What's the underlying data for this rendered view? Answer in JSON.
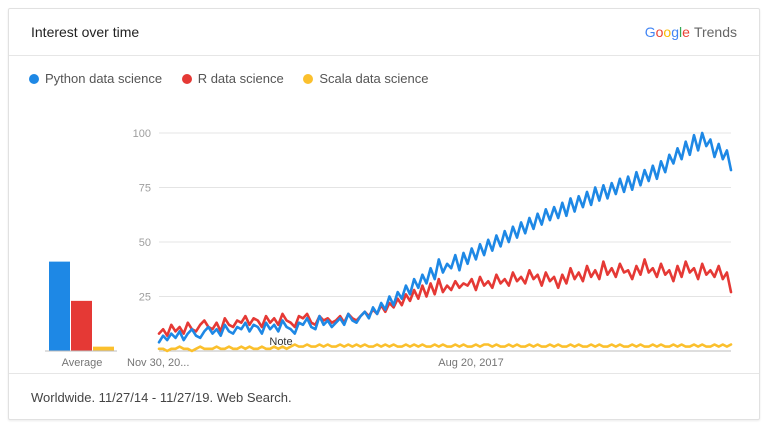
{
  "header": {
    "title": "Interest over time"
  },
  "brand": {
    "google": [
      "G",
      "o",
      "o",
      "g",
      "l",
      "e"
    ],
    "trends": "Trends"
  },
  "footer": {
    "text": "Worldwide. 11/27/14 - 11/27/19. Web Search."
  },
  "chart_data": {
    "type": "line",
    "ylim": [
      0,
      100
    ],
    "yticks": [
      25,
      50,
      75,
      100
    ],
    "grid": true,
    "legend_position": "top-left",
    "x_tick_labels": [
      "Nov 30, 20...",
      "Aug 20, 2017"
    ],
    "annotation": "Note",
    "average_label": "Average",
    "colors": {
      "python": "#1e88e5",
      "r": "#e53935",
      "scala": "#fbc02d"
    },
    "series": [
      {
        "name": "Python data science",
        "color": "#1e88e5",
        "average": 41,
        "values": [
          4,
          7,
          5,
          8,
          6,
          9,
          5,
          8,
          10,
          7,
          6,
          9,
          11,
          8,
          10,
          7,
          12,
          9,
          8,
          11,
          10,
          13,
          9,
          12,
          11,
          8,
          13,
          10,
          12,
          9,
          14,
          11,
          10,
          8,
          13,
          12,
          15,
          11,
          10,
          16,
          12,
          14,
          11,
          13,
          15,
          12,
          17,
          14,
          13,
          16,
          18,
          15,
          20,
          17,
          22,
          19,
          25,
          21,
          27,
          24,
          30,
          26,
          33,
          29,
          35,
          31,
          38,
          33,
          42,
          36,
          40,
          38,
          44,
          37,
          45,
          40,
          47,
          42,
          49,
          44,
          51,
          46,
          53,
          48,
          55,
          50,
          57,
          52,
          59,
          54,
          61,
          56,
          63,
          58,
          65,
          60,
          66,
          61,
          68,
          62,
          70,
          64,
          71,
          66,
          73,
          67,
          75,
          69,
          76,
          70,
          77,
          72,
          79,
          73,
          80,
          74,
          82,
          76,
          83,
          78,
          85,
          79,
          87,
          82,
          90,
          86,
          93,
          88,
          96,
          90,
          99,
          92,
          100,
          94,
          97,
          89,
          95,
          88,
          92,
          83
        ]
      },
      {
        "name": "R data science",
        "color": "#e53935",
        "average": 23,
        "values": [
          8,
          10,
          7,
          12,
          9,
          11,
          8,
          13,
          10,
          9,
          12,
          14,
          11,
          10,
          13,
          9,
          15,
          12,
          11,
          14,
          13,
          16,
          12,
          15,
          14,
          11,
          16,
          13,
          15,
          12,
          17,
          14,
          13,
          11,
          16,
          15,
          17,
          13,
          12,
          16,
          14,
          15,
          13,
          14,
          16,
          13,
          17,
          15,
          14,
          16,
          18,
          16,
          19,
          17,
          21,
          18,
          22,
          20,
          24,
          21,
          26,
          23,
          28,
          24,
          30,
          25,
          31,
          26,
          33,
          27,
          30,
          28,
          32,
          29,
          31,
          30,
          33,
          28,
          34,
          30,
          32,
          29,
          35,
          31,
          33,
          30,
          36,
          32,
          34,
          31,
          37,
          33,
          35,
          30,
          36,
          32,
          34,
          29,
          35,
          31,
          38,
          33,
          36,
          32,
          39,
          34,
          37,
          33,
          41,
          35,
          38,
          34,
          40,
          36,
          37,
          33,
          39,
          35,
          42,
          36,
          38,
          34,
          40,
          35,
          37,
          32,
          39,
          34,
          41,
          36,
          38,
          33,
          40,
          35,
          37,
          34,
          39,
          33,
          36,
          27
        ]
      },
      {
        "name": "Scala data science",
        "color": "#fbc02d",
        "average": 2,
        "values": [
          1,
          1,
          0,
          1,
          1,
          2,
          1,
          1,
          0,
          1,
          2,
          1,
          1,
          1,
          2,
          1,
          1,
          2,
          1,
          1,
          2,
          1,
          2,
          1,
          1,
          2,
          1,
          1,
          2,
          1,
          2,
          1,
          2,
          3,
          2,
          2,
          3,
          2,
          2,
          3,
          2,
          3,
          2,
          2,
          3,
          2,
          3,
          2,
          3,
          2,
          3,
          2,
          2,
          3,
          2,
          3,
          2,
          3,
          2,
          2,
          3,
          2,
          3,
          2,
          3,
          2,
          2,
          3,
          2,
          3,
          2,
          2,
          3,
          2,
          3,
          2,
          2,
          3,
          2,
          3,
          3,
          2,
          3,
          2,
          2,
          3,
          2,
          3,
          2,
          2,
          3,
          2,
          3,
          2,
          2,
          3,
          2,
          3,
          2,
          2,
          3,
          2,
          3,
          2,
          2,
          3,
          2,
          3,
          2,
          2,
          3,
          2,
          3,
          2,
          2,
          3,
          2,
          3,
          2,
          2,
          3,
          2,
          3,
          2,
          2,
          3,
          2,
          3,
          2,
          2,
          3,
          2,
          3,
          2,
          2,
          3,
          2,
          3,
          2,
          3
        ]
      }
    ]
  }
}
